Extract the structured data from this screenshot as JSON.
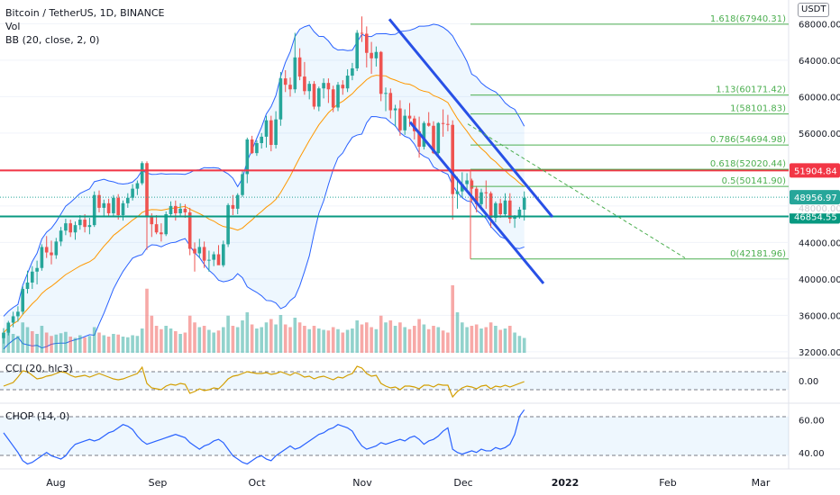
{
  "header": {
    "symbol_line": "Bitcoin / TetherUS, 1D, BINANCE",
    "vol_label": "Vol",
    "bb_label": "BB (20, close, 2, 0)",
    "currency_badge": "USDT"
  },
  "chart_data": {
    "type": "candlestick",
    "price_axis": {
      "ticks": [
        "68000.00",
        "64000.00",
        "60000.00",
        "56000.00",
        "52000.00",
        "48000.00",
        "44000.00",
        "40000.00",
        "36000.00",
        "32000.00"
      ],
      "range": [
        31300,
        70600
      ]
    },
    "time_axis": {
      "labels": [
        "Aug",
        "Sep",
        "Oct",
        "Nov",
        "Dec",
        "2022",
        "Feb",
        "Mar"
      ]
    },
    "candles": [
      [
        33500,
        34600,
        32900,
        34100
      ],
      [
        34100,
        35400,
        33800,
        35200
      ],
      [
        35200,
        36400,
        34700,
        35900
      ],
      [
        35900,
        37000,
        35300,
        36400
      ],
      [
        36400,
        39200,
        36100,
        38900
      ],
      [
        38900,
        40900,
        38400,
        39600
      ],
      [
        39600,
        41400,
        38900,
        40800
      ],
      [
        40800,
        42000,
        39400,
        41200
      ],
      [
        41200,
        43800,
        40900,
        43500
      ],
      [
        43500,
        44700,
        42300,
        42900
      ],
      [
        42900,
        44200,
        41600,
        42600
      ],
      [
        42600,
        44500,
        42200,
        44100
      ],
      [
        44100,
        45700,
        43600,
        45300
      ],
      [
        45300,
        46600,
        44800,
        46100
      ],
      [
        46100,
        46500,
        44600,
        45100
      ],
      [
        45100,
        46300,
        44300,
        45900
      ],
      [
        45900,
        47000,
        45400,
        46500
      ],
      [
        46500,
        47100,
        45100,
        45700
      ],
      [
        45700,
        46700,
        44900,
        45900
      ],
      [
        45900,
        49600,
        45700,
        49200
      ],
      [
        49200,
        49700,
        47300,
        47800
      ],
      [
        47800,
        48700,
        46800,
        48300
      ],
      [
        48300,
        48800,
        46900,
        47200
      ],
      [
        47200,
        49200,
        46900,
        48900
      ],
      [
        48900,
        49300,
        46500,
        47000
      ],
      [
        47000,
        48600,
        46400,
        48300
      ],
      [
        48300,
        49400,
        47800,
        48900
      ],
      [
        48900,
        50400,
        48600,
        49900
      ],
      [
        49900,
        50800,
        49200,
        50500
      ],
      [
        50500,
        52900,
        50300,
        52700
      ],
      [
        52700,
        52900,
        43200,
        46900
      ],
      [
        46900,
        47200,
        44600,
        46000
      ],
      [
        46000,
        47000,
        44900,
        45100
      ],
      [
        45100,
        46100,
        44100,
        44900
      ],
      [
        44900,
        47400,
        44700,
        47100
      ],
      [
        47100,
        48500,
        46800,
        48000
      ],
      [
        48000,
        48600,
        46400,
        47200
      ],
      [
        47200,
        48300,
        46900,
        47700
      ],
      [
        47700,
        48200,
        46700,
        47300
      ],
      [
        47300,
        47800,
        42600,
        43300
      ],
      [
        43300,
        44000,
        40800,
        42800
      ],
      [
        42800,
        44400,
        42300,
        43500
      ],
      [
        43500,
        44100,
        41200,
        42000
      ],
      [
        42000,
        43100,
        40800,
        42100
      ],
      [
        42100,
        43000,
        41400,
        42700
      ],
      [
        42700,
        43700,
        41700,
        41500
      ],
      [
        41500,
        44200,
        41300,
        43800
      ],
      [
        43800,
        48300,
        43500,
        48100
      ],
      [
        48100,
        49200,
        47000,
        47700
      ],
      [
        47700,
        49400,
        47100,
        49200
      ],
      [
        49200,
        51900,
        49000,
        51500
      ],
      [
        51500,
        55500,
        50500,
        55300
      ],
      [
        55300,
        55700,
        53700,
        53800
      ],
      [
        53800,
        55200,
        53500,
        54900
      ],
      [
        54900,
        56000,
        54300,
        55600
      ],
      [
        55600,
        57900,
        54400,
        57400
      ],
      [
        57400,
        57900,
        54000,
        54700
      ],
      [
        54700,
        58400,
        54300,
        57500
      ],
      [
        57500,
        62700,
        56800,
        62000
      ],
      [
        62000,
        62900,
        60500,
        61300
      ],
      [
        61300,
        62100,
        60000,
        60800
      ],
      [
        60800,
        67000,
        60400,
        64300
      ],
      [
        64300,
        65300,
        61800,
        62200
      ],
      [
        62200,
        63800,
        60200,
        60600
      ],
      [
        60600,
        61700,
        59700,
        61400
      ],
      [
        61400,
        61700,
        58600,
        58900
      ],
      [
        58900,
        61100,
        58400,
        60900
      ],
      [
        60900,
        62000,
        59800,
        61500
      ],
      [
        61500,
        62000,
        59300,
        60800
      ],
      [
        60800,
        61200,
        58300,
        58800
      ],
      [
        58800,
        61600,
        58400,
        61300
      ],
      [
        61300,
        61800,
        60200,
        60900
      ],
      [
        60900,
        63000,
        60500,
        62300
      ],
      [
        62300,
        63700,
        61800,
        63100
      ],
      [
        63100,
        67300,
        62800,
        67000
      ],
      [
        67000,
        68800,
        66000,
        66900
      ],
      [
        66900,
        67700,
        63200,
        64800
      ],
      [
        64800,
        66000,
        62500,
        64200
      ],
      [
        64200,
        65500,
        63300,
        64900
      ],
      [
        64900,
        65000,
        59500,
        60300
      ],
      [
        60300,
        61000,
        58400,
        60400
      ],
      [
        60400,
        60900,
        57600,
        58500
      ],
      [
        58500,
        59100,
        56700,
        58700
      ],
      [
        58700,
        59600,
        55700,
        56300
      ],
      [
        56300,
        58600,
        55800,
        57900
      ],
      [
        57900,
        59300,
        56700,
        57600
      ],
      [
        57600,
        57900,
        55300,
        56200
      ],
      [
        56200,
        57800,
        53300,
        54500
      ],
      [
        54500,
        57300,
        54200,
        57100
      ],
      [
        57100,
        58300,
        56700,
        56800
      ],
      [
        56800,
        57300,
        53700,
        53800
      ],
      [
        53800,
        57200,
        53500,
        57100
      ],
      [
        57100,
        58600,
        55600,
        57000
      ],
      [
        57000,
        58000,
        56200,
        56900
      ],
      [
        56900,
        57400,
        46500,
        49300
      ],
      [
        49300,
        51200,
        47700,
        49600
      ],
      [
        49600,
        51700,
        49000,
        50400
      ],
      [
        50400,
        51600,
        49700,
        50800
      ],
      [
        50800,
        51000,
        48500,
        49900
      ],
      [
        49900,
        50200,
        47300,
        48200
      ],
      [
        48200,
        49900,
        47600,
        49500
      ],
      [
        49500,
        50800,
        47700,
        49400
      ],
      [
        49400,
        49600,
        45600,
        46700
      ],
      [
        46700,
        48500,
        46200,
        48300
      ],
      [
        48300,
        48800,
        46700,
        47100
      ],
      [
        47100,
        49400,
        46800,
        48600
      ],
      [
        48600,
        49400,
        46100,
        46600
      ],
      [
        46600,
        47000,
        45600,
        46800
      ],
      [
        46800,
        47900,
        46600,
        47600
      ],
      [
        47600,
        49600,
        46400,
        48900
      ]
    ],
    "volumes": [
      {
        "v": 0.3,
        "up": true
      },
      {
        "v": 0.35,
        "up": true
      },
      {
        "v": 0.28,
        "up": true
      },
      {
        "v": 0.25,
        "up": true
      },
      {
        "v": 0.45,
        "up": true
      },
      {
        "v": 0.38,
        "up": true
      },
      {
        "v": 0.32,
        "up": false
      },
      {
        "v": 0.28,
        "up": true
      },
      {
        "v": 0.4,
        "up": true
      },
      {
        "v": 0.3,
        "up": false
      },
      {
        "v": 0.25,
        "up": false
      },
      {
        "v": 0.27,
        "up": true
      },
      {
        "v": 0.29,
        "up": true
      },
      {
        "v": 0.31,
        "up": true
      },
      {
        "v": 0.24,
        "up": false
      },
      {
        "v": 0.22,
        "up": true
      },
      {
        "v": 0.26,
        "up": true
      },
      {
        "v": 0.23,
        "up": false
      },
      {
        "v": 0.25,
        "up": true
      },
      {
        "v": 0.38,
        "up": true
      },
      {
        "v": 0.3,
        "up": false
      },
      {
        "v": 0.26,
        "up": true
      },
      {
        "v": 0.24,
        "up": false
      },
      {
        "v": 0.28,
        "up": true
      },
      {
        "v": 0.27,
        "up": false
      },
      {
        "v": 0.24,
        "up": true
      },
      {
        "v": 0.23,
        "up": true
      },
      {
        "v": 0.26,
        "up": true
      },
      {
        "v": 0.25,
        "up": true
      },
      {
        "v": 0.36,
        "up": true
      },
      {
        "v": 0.95,
        "up": false
      },
      {
        "v": 0.55,
        "up": false
      },
      {
        "v": 0.4,
        "up": false
      },
      {
        "v": 0.35,
        "up": false
      },
      {
        "v": 0.4,
        "up": true
      },
      {
        "v": 0.36,
        "up": true
      },
      {
        "v": 0.32,
        "up": false
      },
      {
        "v": 0.28,
        "up": true
      },
      {
        "v": 0.3,
        "up": false
      },
      {
        "v": 0.55,
        "up": false
      },
      {
        "v": 0.45,
        "up": false
      },
      {
        "v": 0.38,
        "up": true
      },
      {
        "v": 0.4,
        "up": false
      },
      {
        "v": 0.34,
        "up": true
      },
      {
        "v": 0.3,
        "up": true
      },
      {
        "v": 0.33,
        "up": false
      },
      {
        "v": 0.38,
        "up": true
      },
      {
        "v": 0.55,
        "up": true
      },
      {
        "v": 0.4,
        "up": false
      },
      {
        "v": 0.38,
        "up": true
      },
      {
        "v": 0.48,
        "up": true
      },
      {
        "v": 0.6,
        "up": true
      },
      {
        "v": 0.42,
        "up": false
      },
      {
        "v": 0.36,
        "up": true
      },
      {
        "v": 0.38,
        "up": true
      },
      {
        "v": 0.45,
        "up": true
      },
      {
        "v": 0.5,
        "up": false
      },
      {
        "v": 0.42,
        "up": true
      },
      {
        "v": 0.56,
        "up": true
      },
      {
        "v": 0.42,
        "up": false
      },
      {
        "v": 0.38,
        "up": false
      },
      {
        "v": 0.52,
        "up": true
      },
      {
        "v": 0.45,
        "up": false
      },
      {
        "v": 0.4,
        "up": false
      },
      {
        "v": 0.35,
        "up": true
      },
      {
        "v": 0.4,
        "up": false
      },
      {
        "v": 0.36,
        "up": true
      },
      {
        "v": 0.34,
        "up": true
      },
      {
        "v": 0.33,
        "up": false
      },
      {
        "v": 0.38,
        "up": false
      },
      {
        "v": 0.35,
        "up": true
      },
      {
        "v": 0.3,
        "up": false
      },
      {
        "v": 0.34,
        "up": true
      },
      {
        "v": 0.36,
        "up": true
      },
      {
        "v": 0.48,
        "up": true
      },
      {
        "v": 0.42,
        "up": false
      },
      {
        "v": 0.45,
        "up": false
      },
      {
        "v": 0.38,
        "up": false
      },
      {
        "v": 0.35,
        "up": true
      },
      {
        "v": 0.55,
        "up": false
      },
      {
        "v": 0.45,
        "up": true
      },
      {
        "v": 0.48,
        "up": false
      },
      {
        "v": 0.4,
        "up": true
      },
      {
        "v": 0.45,
        "up": false
      },
      {
        "v": 0.38,
        "up": true
      },
      {
        "v": 0.35,
        "up": false
      },
      {
        "v": 0.4,
        "up": false
      },
      {
        "v": 0.5,
        "up": false
      },
      {
        "v": 0.42,
        "up": true
      },
      {
        "v": 0.35,
        "up": false
      },
      {
        "v": 0.4,
        "up": false
      },
      {
        "v": 0.38,
        "up": true
      },
      {
        "v": 0.33,
        "up": false
      },
      {
        "v": 0.3,
        "up": false
      },
      {
        "v": 1.0,
        "up": false
      },
      {
        "v": 0.6,
        "up": true
      },
      {
        "v": 0.45,
        "up": true
      },
      {
        "v": 0.38,
        "up": true
      },
      {
        "v": 0.4,
        "up": false
      },
      {
        "v": 0.42,
        "up": false
      },
      {
        "v": 0.36,
        "up": true
      },
      {
        "v": 0.38,
        "up": false
      },
      {
        "v": 0.45,
        "up": false
      },
      {
        "v": 0.4,
        "up": true
      },
      {
        "v": 0.34,
        "up": false
      },
      {
        "v": 0.36,
        "up": true
      },
      {
        "v": 0.4,
        "up": false
      },
      {
        "v": 0.3,
        "up": true
      },
      {
        "v": 0.25,
        "up": true
      },
      {
        "v": 0.22,
        "up": true
      }
    ],
    "fib_levels": [
      {
        "label": "1.618(67940.31)",
        "price": 67940.31
      },
      {
        "label": "1.13(60171.42)",
        "price": 60171.42
      },
      {
        "label": "1(58101.83)",
        "price": 58101.83
      },
      {
        "label": "0.786(54694.98)",
        "price": 54694.98
      },
      {
        "label": "0.618(52020.44)",
        "price": 52020.44
      },
      {
        "label": "0.5(50141.90)",
        "price": 50141.9
      },
      {
        "label": "0(42181.96)",
        "price": 42181.96
      }
    ],
    "horizontal_lines": [
      {
        "price": 51904.84,
        "color": "#f23645",
        "label": "51904.84"
      },
      {
        "price": 46854.55,
        "color": "#089981",
        "label": "46854.55"
      }
    ],
    "last_price": {
      "price": 48956.97,
      "label": "48956.97",
      "hidden_label": "48000.00",
      "color": "#26a69a"
    },
    "colors": {
      "up": "#26a69a",
      "down": "#ef5350",
      "bb": "#2962ff",
      "bb_fill": "#2196f3",
      "ma": "#ff9800",
      "channel": "#2850e6",
      "fib": "#4caf50"
    },
    "cci": {
      "label": "CCI (20, hlc3)",
      "ticks": [
        "0.00"
      ],
      "values": [
        -60,
        -40,
        -20,
        40,
        110,
        100,
        60,
        20,
        30,
        50,
        60,
        80,
        100,
        90,
        60,
        40,
        50,
        60,
        40,
        60,
        80,
        60,
        40,
        20,
        10,
        20,
        40,
        60,
        80,
        150,
        -30,
        -80,
        -90,
        -100,
        -60,
        -40,
        -50,
        -30,
        -40,
        -140,
        -120,
        -90,
        -110,
        -100,
        -80,
        -90,
        -40,
        20,
        50,
        60,
        80,
        100,
        90,
        80,
        80,
        90,
        70,
        80,
        100,
        80,
        60,
        90,
        70,
        40,
        50,
        20,
        40,
        50,
        30,
        10,
        40,
        30,
        60,
        80,
        160,
        140,
        80,
        50,
        60,
        -30,
        -60,
        -80,
        -70,
        -100,
        -60,
        -60,
        -70,
        -90,
        -50,
        -50,
        -70,
        -40,
        -50,
        -50,
        -180,
        -120,
        -80,
        -60,
        -70,
        -90,
        -60,
        -50,
        -90,
        -60,
        -70,
        -50,
        -70,
        -50,
        -30,
        -10
      ]
    },
    "chop": {
      "label": "CHOP (14, 0)",
      "ticks": [
        "60.00",
        "40.00"
      ],
      "values": [
        52,
        48,
        44,
        40,
        35,
        33,
        34,
        36,
        38,
        40,
        38,
        37,
        36,
        38,
        42,
        45,
        46,
        47,
        48,
        47,
        48,
        50,
        52,
        53,
        55,
        57,
        56,
        54,
        50,
        47,
        45,
        46,
        47,
        48,
        49,
        50,
        51,
        50,
        49,
        46,
        44,
        42,
        44,
        45,
        47,
        48,
        46,
        42,
        38,
        36,
        34,
        33,
        35,
        37,
        38,
        36,
        35,
        38,
        40,
        42,
        44,
        42,
        43,
        45,
        47,
        49,
        51,
        52,
        54,
        55,
        57,
        56,
        55,
        53,
        48,
        44,
        42,
        43,
        44,
        46,
        45,
        46,
        47,
        48,
        47,
        49,
        50,
        48,
        45,
        47,
        48,
        50,
        53,
        55,
        42,
        40,
        39,
        40,
        41,
        40,
        42,
        41,
        41,
        43,
        42,
        43,
        45,
        51,
        62,
        66
      ]
    },
    "fill_ratio": 0.68
  }
}
